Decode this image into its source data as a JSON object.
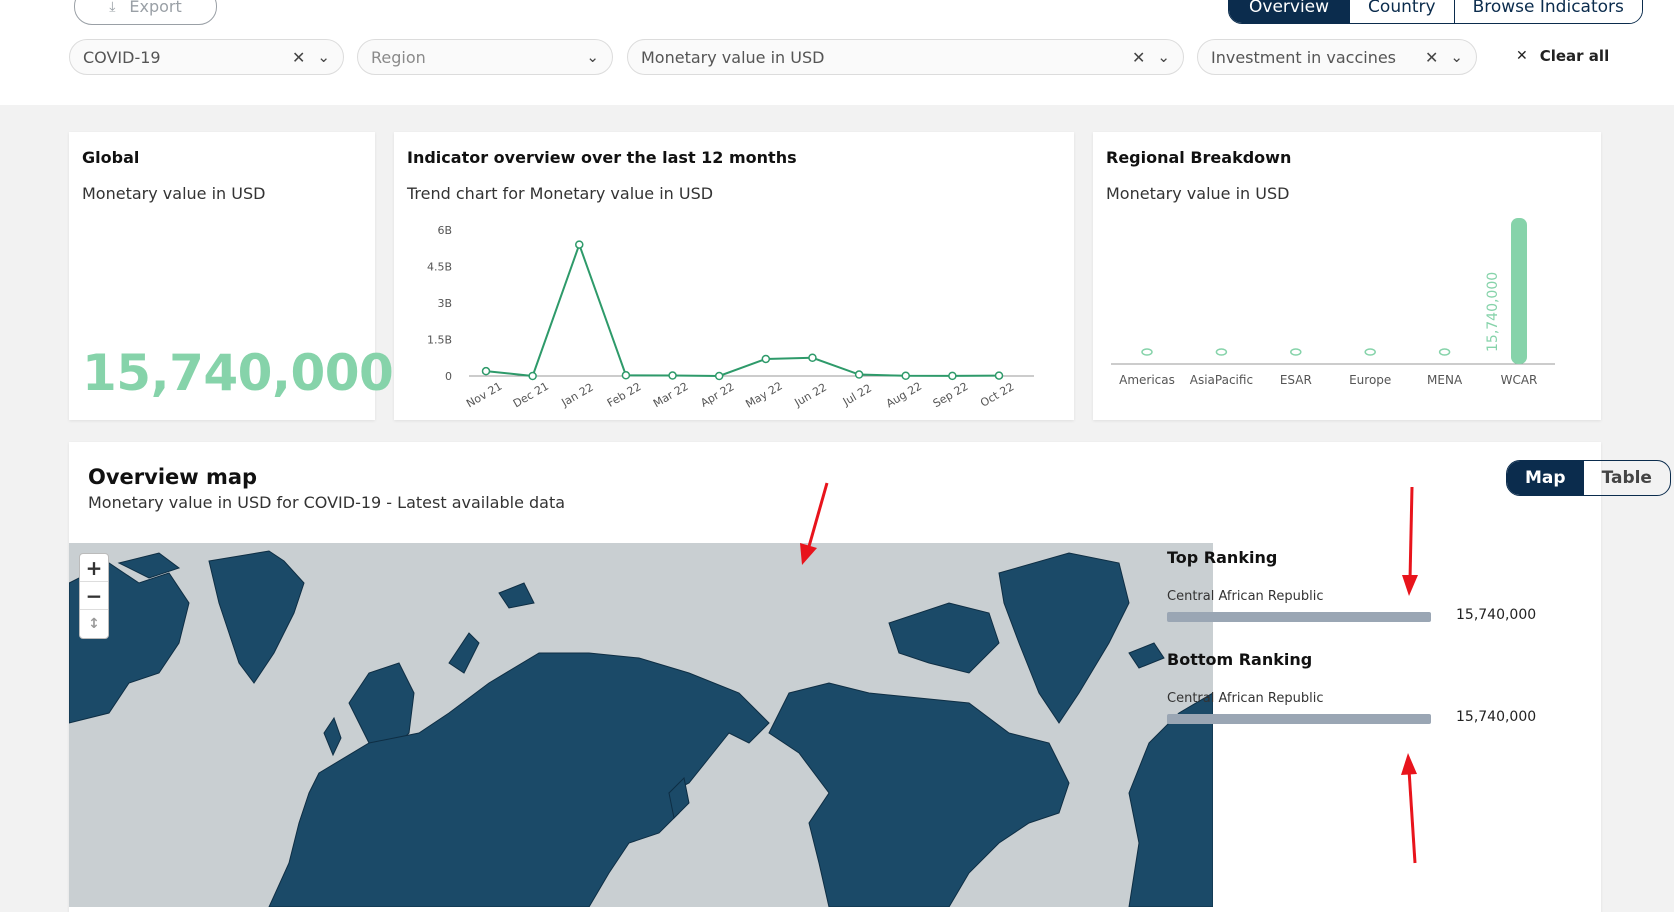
{
  "toolbar": {
    "export_label": "Export",
    "nav_tabs": [
      "Overview",
      "Country",
      "Browse Indicators"
    ]
  },
  "filters": {
    "topic": "COVID-19",
    "region_placeholder": "Region",
    "measure": "Monetary value in USD",
    "indicator": "Investment in vaccines",
    "clear_all": "Clear all"
  },
  "global_card": {
    "title": "Global",
    "subtitle": "Monetary value in USD",
    "value": "15,740,000"
  },
  "trend_card": {
    "title": "Indicator overview over the last 12 months",
    "subtitle": "Trend chart for Monetary value in USD"
  },
  "regional_card": {
    "title": "Regional Breakdown",
    "subtitle": "Monetary value in USD"
  },
  "chart_data": [
    {
      "type": "line",
      "title": "Indicator overview over the last 12 months",
      "subtitle": "Trend chart for Monetary value in USD",
      "categories": [
        "Nov 21",
        "Dec 21",
        "Jan 22",
        "Feb 22",
        "Mar 22",
        "Apr 22",
        "May 22",
        "Jun 22",
        "Jul 22",
        "Aug 22",
        "Sep 22",
        "Oct 22"
      ],
      "values": [
        200000000,
        0,
        5400000000,
        30000000,
        20000000,
        0,
        700000000,
        750000000,
        60000000,
        10000000,
        5000000,
        15740000
      ],
      "yticks": [
        "0",
        "1.5B",
        "3B",
        "4.5B",
        "6B"
      ],
      "ylim": [
        0,
        6000000000
      ],
      "color": "#2e9a6a",
      "grid": false
    },
    {
      "type": "bar",
      "title": "Regional Breakdown",
      "subtitle": "Monetary value in USD",
      "categories": [
        "Americas",
        "AsiaPacific",
        "ESAR",
        "Europe",
        "MENA",
        "WCAR"
      ],
      "values": [
        0,
        0,
        0,
        0,
        0,
        15740000
      ],
      "data_labels": [
        "",
        "",
        "",
        "",
        "",
        "15,740,000"
      ],
      "ylim": [
        0,
        15740000
      ],
      "color": "#86d3aa"
    }
  ],
  "map_section": {
    "title": "Overview map",
    "subtitle": "Monetary value in USD for COVID-19 - Latest available data",
    "toggle": [
      "Map",
      "Table"
    ],
    "zoom_in": "+",
    "zoom_out": "−",
    "reset": "↕",
    "top_ranking": {
      "title": "Top Ranking",
      "items": [
        {
          "name": "Central African Republic",
          "value": "15,740,000",
          "fraction": 1.0
        }
      ]
    },
    "bottom_ranking": {
      "title": "Bottom Ranking",
      "items": [
        {
          "name": "Central African Republic",
          "value": "15,740,000",
          "fraction": 1.0
        }
      ]
    }
  },
  "colors": {
    "navy": "#0b2c4d",
    "land": "#1b4a68",
    "sea": "#c9cfd2",
    "accent_green": "#86d3aa",
    "line_green": "#2e9a6a",
    "annotation_red": "#e8141c"
  }
}
